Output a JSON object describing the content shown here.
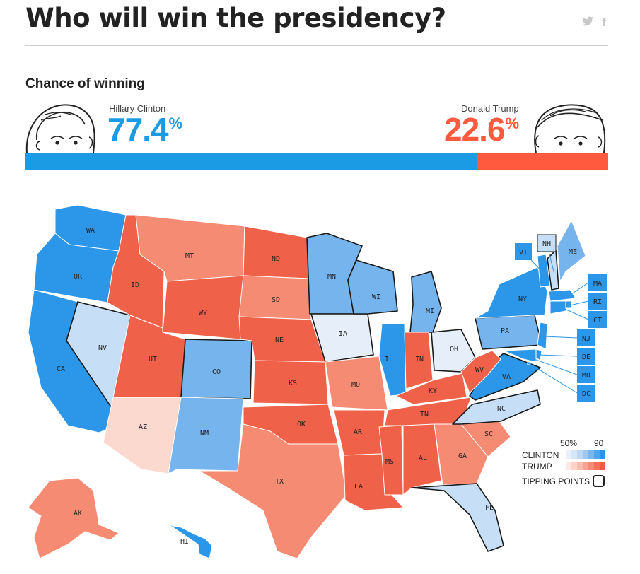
{
  "header": {
    "title": "Who will win the presidency?",
    "share_twitter": "twitter-icon",
    "share_facebook": "f"
  },
  "forecast": {
    "subtitle": "Chance of winning",
    "clinton": {
      "name": "Hillary Clinton",
      "pct": "77.4",
      "pct_value": 77.4,
      "unit": "%",
      "color": "#1a9be3"
    },
    "trump": {
      "name": "Donald Trump",
      "pct": "22.6",
      "pct_value": 22.6,
      "unit": "%",
      "color": "#ff5a3d"
    }
  },
  "map": {
    "states": [
      {
        "abbr": "WA",
        "lean": "clinton-strong"
      },
      {
        "abbr": "OR",
        "lean": "clinton-strong"
      },
      {
        "abbr": "CA",
        "lean": "clinton-strong"
      },
      {
        "abbr": "NV",
        "lean": "clinton-lean"
      },
      {
        "abbr": "ID",
        "lean": "trump-strong"
      },
      {
        "abbr": "MT",
        "lean": "trump-medium"
      },
      {
        "abbr": "WY",
        "lean": "trump-strong"
      },
      {
        "abbr": "UT",
        "lean": "trump-strong"
      },
      {
        "abbr": "AZ",
        "lean": "trump-lean"
      },
      {
        "abbr": "CO",
        "lean": "clinton-medium"
      },
      {
        "abbr": "NM",
        "lean": "clinton-medium"
      },
      {
        "abbr": "ND",
        "lean": "trump-strong"
      },
      {
        "abbr": "SD",
        "lean": "trump-medium"
      },
      {
        "abbr": "NE",
        "lean": "trump-strong"
      },
      {
        "abbr": "KS",
        "lean": "trump-strong"
      },
      {
        "abbr": "OK",
        "lean": "trump-strong"
      },
      {
        "abbr": "TX",
        "lean": "trump-medium"
      },
      {
        "abbr": "MN",
        "lean": "clinton-medium"
      },
      {
        "abbr": "IA",
        "lean": "clinton-tossup"
      },
      {
        "abbr": "MO",
        "lean": "trump-medium"
      },
      {
        "abbr": "AR",
        "lean": "trump-strong"
      },
      {
        "abbr": "LA",
        "lean": "trump-strong"
      },
      {
        "abbr": "WI",
        "lean": "clinton-medium"
      },
      {
        "abbr": "IL",
        "lean": "clinton-strong"
      },
      {
        "abbr": "MI",
        "lean": "clinton-medium"
      },
      {
        "abbr": "IN",
        "lean": "trump-strong"
      },
      {
        "abbr": "OH",
        "lean": "clinton-tossup"
      },
      {
        "abbr": "KY",
        "lean": "trump-strong"
      },
      {
        "abbr": "TN",
        "lean": "trump-strong"
      },
      {
        "abbr": "MS",
        "lean": "trump-strong"
      },
      {
        "abbr": "AL",
        "lean": "trump-strong"
      },
      {
        "abbr": "GA",
        "lean": "trump-medium"
      },
      {
        "abbr": "FL",
        "lean": "clinton-lean"
      },
      {
        "abbr": "SC",
        "lean": "trump-medium"
      },
      {
        "abbr": "NC",
        "lean": "clinton-lean"
      },
      {
        "abbr": "VA",
        "lean": "clinton-strong"
      },
      {
        "abbr": "WV",
        "lean": "trump-strong"
      },
      {
        "abbr": "PA",
        "lean": "clinton-medium"
      },
      {
        "abbr": "NY",
        "lean": "clinton-strong"
      },
      {
        "abbr": "VT",
        "lean": "clinton-strong"
      },
      {
        "abbr": "NH",
        "lean": "clinton-lean"
      },
      {
        "abbr": "ME",
        "lean": "clinton-medium"
      },
      {
        "abbr": "MA",
        "lean": "clinton-strong"
      },
      {
        "abbr": "RI",
        "lean": "clinton-strong"
      },
      {
        "abbr": "CT",
        "lean": "clinton-strong"
      },
      {
        "abbr": "NJ",
        "lean": "clinton-strong"
      },
      {
        "abbr": "DE",
        "lean": "clinton-strong"
      },
      {
        "abbr": "MD",
        "lean": "clinton-strong"
      },
      {
        "abbr": "DC",
        "lean": "clinton-strong"
      },
      {
        "abbr": "AK",
        "lean": "trump-medium"
      },
      {
        "abbr": "HI",
        "lean": "clinton-strong"
      }
    ]
  },
  "legend": {
    "tick_low": "50%",
    "tick_high": "90",
    "clinton_label": "CLINTON",
    "trump_label": "TRUMP",
    "tipping_label": "TIPPING POINTS",
    "clinton_scale": [
      "#e8f1fb",
      "#d4e6f8",
      "#bcd8f4",
      "#9fc8f1",
      "#7ab6ee",
      "#4fa5ec",
      "#2995e8"
    ],
    "trump_scale": [
      "#fde8e3",
      "#fbd3c9",
      "#f9bcae",
      "#f7a391",
      "#f58a74",
      "#f4705a",
      "#f05a44"
    ]
  },
  "colors": {
    "clinton-strong": "#2c96e8",
    "clinton-medium": "#76b4ee",
    "clinton-lean": "#c6dff6",
    "clinton-tossup": "#e5eef9",
    "trump-strong": "#f0614a",
    "trump-medium": "#f68b74",
    "trump-lean": "#fbd9cf"
  }
}
